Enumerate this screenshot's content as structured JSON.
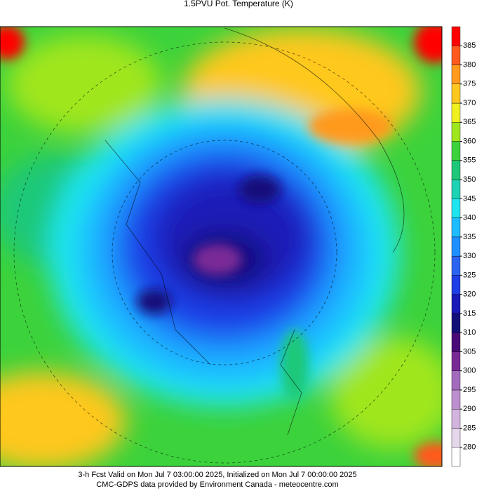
{
  "title": "1.5PVU Pot. Temperature (K)",
  "colorbar": {
    "ticks": [
      280,
      285,
      290,
      295,
      300,
      305,
      310,
      315,
      320,
      325,
      330,
      335,
      340,
      345,
      350,
      355,
      360,
      365,
      370,
      375,
      380,
      385
    ],
    "colors": [
      "#ffffff",
      "#e6d6ec",
      "#d2b4df",
      "#bc8fcf",
      "#a36bbd",
      "#7a2a97",
      "#4a0a78",
      "#14107a",
      "#1a1ab8",
      "#1e3ee6",
      "#2a64f0",
      "#1e90ff",
      "#1ebcff",
      "#1ee6f0",
      "#1ed2b4",
      "#1ec878",
      "#3cd23c",
      "#a0e61e",
      "#f0f01e",
      "#ffc81e",
      "#ff9a1e",
      "#ff5a1e",
      "#ff0000"
    ]
  },
  "footer": [
    "3-h Fcst Valid on Mon Jul  7 03:00:00 2025, Initialized on Mon Jul  7 00:00:00 2025",
    "CMC-GDPS data provided by Environment Canada - meteocentre.com"
  ]
}
